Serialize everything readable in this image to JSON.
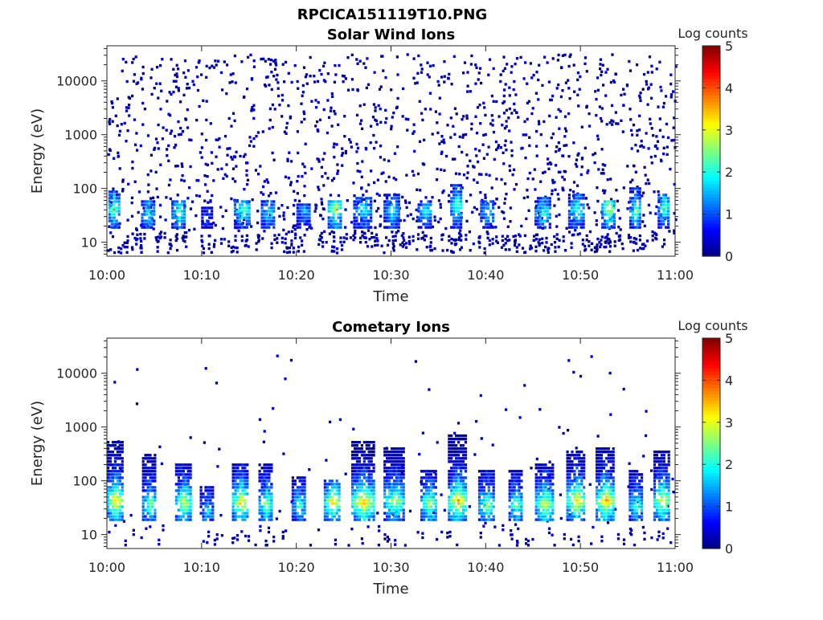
{
  "figure": {
    "filename_title": "RPCICA151119T10.PNG"
  },
  "chart_data": [
    {
      "type": "heatmap",
      "title": "Solar Wind Ions",
      "xlabel": "Time",
      "ylabel": "Energy (eV)",
      "x_range": [
        "10:00",
        "11:00"
      ],
      "x_ticks": [
        "10:00",
        "10:10",
        "10:20",
        "10:30",
        "10:40",
        "10:50",
        "11:00"
      ],
      "y_scale": "log",
      "y_range_eV": [
        5.5,
        45000
      ],
      "y_ticks": [
        10,
        100,
        1000,
        10000
      ],
      "y_tick_labels": [
        "10",
        "100",
        "1000",
        "10000"
      ],
      "colorbar": {
        "label": "Log counts",
        "range": [
          0,
          5
        ],
        "ticks": [
          "0",
          "1",
          "2",
          "3",
          "4",
          "5"
        ],
        "colormap": "jet"
      },
      "description_of_content": "Sparse single-count noise (log counts ~0) spread from ~6 eV to ~30000 eV; repeated bursts of 1-3 log counts at ~25-60 eV roughly every 2-4 minutes",
      "bursts": [
        {
          "t_min": 0.7,
          "width_min": 1.6,
          "peak_eV": 40,
          "peak_log": 2.6,
          "top_eV": 90
        },
        {
          "t_min": 4.3,
          "width_min": 1.4,
          "peak_eV": 32,
          "peak_log": 2.0,
          "top_eV": 60
        },
        {
          "t_min": 7.6,
          "width_min": 1.6,
          "peak_eV": 35,
          "peak_log": 2.3,
          "top_eV": 60
        },
        {
          "t_min": 10.6,
          "width_min": 1.3,
          "peak_eV": 30,
          "peak_log": 1.0,
          "top_eV": 45
        },
        {
          "t_min": 14.3,
          "width_min": 1.8,
          "peak_eV": 38,
          "peak_log": 2.5,
          "top_eV": 60
        },
        {
          "t_min": 17.0,
          "width_min": 1.5,
          "peak_eV": 33,
          "peak_log": 2.0,
          "top_eV": 60
        },
        {
          "t_min": 20.7,
          "width_min": 1.4,
          "peak_eV": 35,
          "peak_log": 1.5,
          "top_eV": 50
        },
        {
          "t_min": 24.1,
          "width_min": 1.6,
          "peak_eV": 40,
          "peak_log": 3.0,
          "top_eV": 60
        },
        {
          "t_min": 27.0,
          "width_min": 2.0,
          "peak_eV": 38,
          "peak_log": 2.0,
          "top_eV": 70
        },
        {
          "t_min": 30.1,
          "width_min": 1.8,
          "peak_eV": 36,
          "peak_log": 2.0,
          "top_eV": 80
        },
        {
          "t_min": 33.6,
          "width_min": 1.6,
          "peak_eV": 34,
          "peak_log": 2.0,
          "top_eV": 60
        },
        {
          "t_min": 36.9,
          "width_min": 1.3,
          "peak_eV": 45,
          "peak_log": 2.5,
          "top_eV": 120
        },
        {
          "t_min": 40.2,
          "width_min": 1.6,
          "peak_eV": 36,
          "peak_log": 2.0,
          "top_eV": 60
        },
        {
          "t_min": 46.0,
          "width_min": 1.7,
          "peak_eV": 33,
          "peak_log": 2.2,
          "top_eV": 70
        },
        {
          "t_min": 49.6,
          "width_min": 1.8,
          "peak_eV": 38,
          "peak_log": 2.3,
          "top_eV": 80
        },
        {
          "t_min": 53.0,
          "width_min": 1.6,
          "peak_eV": 40,
          "peak_log": 3.0,
          "top_eV": 60
        },
        {
          "t_min": 55.8,
          "width_min": 1.3,
          "peak_eV": 36,
          "peak_log": 2.4,
          "top_eV": 100
        },
        {
          "t_min": 58.8,
          "width_min": 1.3,
          "peak_eV": 42,
          "peak_log": 2.5,
          "top_eV": 80
        }
      ]
    },
    {
      "type": "heatmap",
      "title": "Cometary Ions",
      "xlabel": "Time",
      "ylabel": "Energy (eV)",
      "x_range": [
        "10:00",
        "11:00"
      ],
      "x_ticks": [
        "10:00",
        "10:10",
        "10:20",
        "10:30",
        "10:40",
        "10:50",
        "11:00"
      ],
      "y_scale": "log",
      "y_range_eV": [
        5.5,
        45000
      ],
      "y_ticks": [
        10,
        100,
        1000,
        10000
      ],
      "y_tick_labels": [
        "10",
        "100",
        "1000",
        "10000"
      ],
      "colorbar": {
        "label": "Log counts",
        "range": [
          0,
          5
        ],
        "ticks": [
          "0",
          "1",
          "2",
          "3",
          "4",
          "5"
        ],
        "colormap": "jet"
      },
      "description_of_content": "Repeated ion bursts every ~3 minutes peaking at ~30-50 eV (up to ~3.5-4 log counts), extending up to several hundred eV; sparse counts up to ~20000 eV",
      "bursts": [
        {
          "t_min": 0.9,
          "width_min": 1.8,
          "peak_eV": 40,
          "peak_log": 3.6,
          "top_eV": 500
        },
        {
          "t_min": 4.5,
          "width_min": 1.6,
          "peak_eV": 35,
          "peak_log": 2.6,
          "top_eV": 300
        },
        {
          "t_min": 8.1,
          "width_min": 1.8,
          "peak_eV": 38,
          "peak_log": 3.2,
          "top_eV": 200
        },
        {
          "t_min": 10.6,
          "width_min": 1.6,
          "peak_eV": 25,
          "peak_log": 1.8,
          "top_eV": 80
        },
        {
          "t_min": 14.1,
          "width_min": 1.8,
          "peak_eV": 38,
          "peak_log": 3.6,
          "top_eV": 200
        },
        {
          "t_min": 16.8,
          "width_min": 1.6,
          "peak_eV": 35,
          "peak_log": 2.8,
          "top_eV": 200
        },
        {
          "t_min": 20.3,
          "width_min": 1.6,
          "peak_eV": 33,
          "peak_log": 2.2,
          "top_eV": 120
        },
        {
          "t_min": 23.8,
          "width_min": 1.8,
          "peak_eV": 38,
          "peak_log": 3.5,
          "top_eV": 100
        },
        {
          "t_min": 27.0,
          "width_min": 2.4,
          "peak_eV": 38,
          "peak_log": 3.7,
          "top_eV": 500
        },
        {
          "t_min": 30.3,
          "width_min": 2.2,
          "peak_eV": 40,
          "peak_log": 3.0,
          "top_eV": 400
        },
        {
          "t_min": 34.0,
          "width_min": 1.8,
          "peak_eV": 35,
          "peak_log": 3.0,
          "top_eV": 150
        },
        {
          "t_min": 37.0,
          "width_min": 2.0,
          "peak_eV": 40,
          "peak_log": 3.8,
          "top_eV": 700
        },
        {
          "t_min": 40.1,
          "width_min": 1.8,
          "peak_eV": 33,
          "peak_log": 2.8,
          "top_eV": 150
        },
        {
          "t_min": 43.2,
          "width_min": 1.6,
          "peak_eV": 33,
          "peak_log": 2.6,
          "top_eV": 150
        },
        {
          "t_min": 46.2,
          "width_min": 2.0,
          "peak_eV": 35,
          "peak_log": 3.2,
          "top_eV": 200
        },
        {
          "t_min": 49.5,
          "width_min": 2.0,
          "peak_eV": 40,
          "peak_log": 3.6,
          "top_eV": 350
        },
        {
          "t_min": 52.6,
          "width_min": 2.0,
          "peak_eV": 40,
          "peak_log": 3.8,
          "top_eV": 400
        },
        {
          "t_min": 55.9,
          "width_min": 1.6,
          "peak_eV": 33,
          "peak_log": 2.4,
          "top_eV": 150
        },
        {
          "t_min": 58.6,
          "width_min": 1.8,
          "peak_eV": 40,
          "peak_log": 3.4,
          "top_eV": 350
        }
      ]
    }
  ]
}
